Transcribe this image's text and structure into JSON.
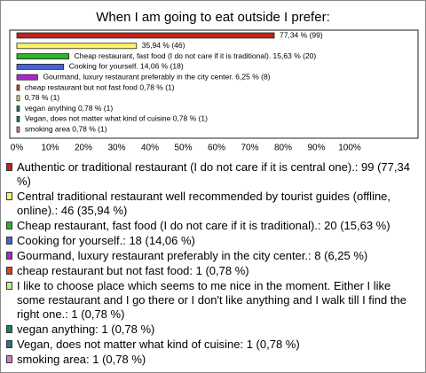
{
  "chart_data": {
    "type": "bar",
    "orientation": "horizontal",
    "title": "When I am going to eat outside I prefer:",
    "categories": [
      "Authentic or traditional restaurant (I do not care if it is central one).: 99 (77,34 %)",
      "Central traditional restaurant well recommended by tourist guides (offline, online).: 46 (35,94 %)",
      "Cheap restaurant, fast food (I do not care if it is traditional).: 20 (15,63 %)",
      "Cooking for yourself.: 18 (14,06 %)",
      "Gourmand, luxury restaurant preferably in the city center.: 8 (6,25 %)",
      "cheap restaurant but not fast food: 1 (0,78 %)",
      "I like to choose place which seems to me nice in the moment. Either I like some restaurant and I go there or I don't like anything and I walk till I find the right one.: 1 (0,78 %)",
      "vegan anything: 1 (0,78 %)",
      "Vegan, does not matter what kind of cuisine: 1 (0,78 %)",
      "smoking area: 1 (0,78 %)"
    ],
    "values": [
      77.34,
      35.94,
      15.63,
      14.06,
      6.25,
      0.78,
      0.78,
      0.78,
      0.78,
      0.78
    ],
    "value_labels": [
      "77,34 % (99)",
      "35,94 % (46)",
      "Cheap restaurant, fast food (I do not care if it is traditional). 15,63 % (20)",
      "Cooking for yourself. 14,06 % (18)",
      "Gourmand, luxury restaurant preferably in the city center. 6,25 % (8)",
      "cheap restaurant but not fast food 0,78 % (1)",
      "0,78 % (1)",
      "vegan anything 0,78 % (1)",
      "Vegan, does not matter what kind of cuisine 0,78 % (1)",
      "smoking area 0,78 % (1)"
    ],
    "colors": [
      "#c0231b",
      "#fff56a",
      "#2db32d",
      "#4a62d8",
      "#a92ac9",
      "#e0401a",
      "#c6ef8a",
      "#16855a",
      "#2a7386",
      "#cf7fc0"
    ],
    "xlim": [
      0,
      100
    ],
    "xticks": [
      {
        "value": 0,
        "label": "0%"
      },
      {
        "value": 10,
        "label": "10%"
      },
      {
        "value": 20,
        "label": "20%"
      },
      {
        "value": 30,
        "label": "30%"
      },
      {
        "value": 40,
        "label": "40%"
      },
      {
        "value": 50,
        "label": "50%"
      },
      {
        "value": 60,
        "label": "60%"
      },
      {
        "value": 70,
        "label": "70%"
      },
      {
        "value": 80,
        "label": "80%"
      },
      {
        "value": 90,
        "label": "90%"
      },
      {
        "value": 100,
        "label": "100%"
      }
    ]
  }
}
